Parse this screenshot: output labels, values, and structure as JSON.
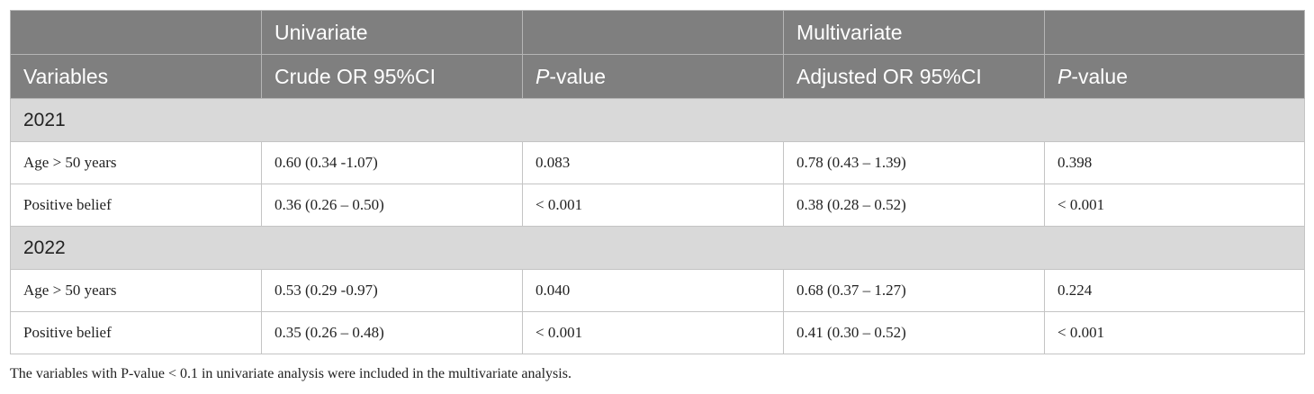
{
  "table": {
    "header": {
      "group_row": {
        "univariate": "Univariate",
        "multivariate": "Multivariate"
      },
      "columns": {
        "variables": "Variables",
        "crude": "Crude OR 95%CI",
        "p_uni": {
          "italic": "P",
          "rest": "-value"
        },
        "adjusted": "Adjusted OR 95%CI",
        "p_multi": {
          "italic": "P",
          "rest": "-value"
        }
      }
    },
    "sections": [
      {
        "year": "2021",
        "rows": [
          [
            "Age > 50 years",
            "0.60 (0.34 -1.07)",
            "0.083",
            "0.78 (0.43 – 1.39)",
            "0.398"
          ],
          [
            "Positive belief",
            "0.36 (0.26 – 0.50)",
            "< 0.001",
            "0.38 (0.28 – 0.52)",
            "< 0.001"
          ]
        ]
      },
      {
        "year": "2022",
        "rows": [
          [
            "Age > 50 years",
            "0.53 (0.29 -0.97)",
            "0.040",
            "0.68 (0.37 – 1.27)",
            "0.224"
          ],
          [
            "Positive belief",
            "0.35 (0.26 – 0.48)",
            "< 0.001",
            "0.41 (0.30 – 0.52)",
            "< 0.001"
          ]
        ]
      }
    ],
    "footnote": "The variables with P-value < 0.1 in univariate analysis were included in the multivariate analysis."
  }
}
